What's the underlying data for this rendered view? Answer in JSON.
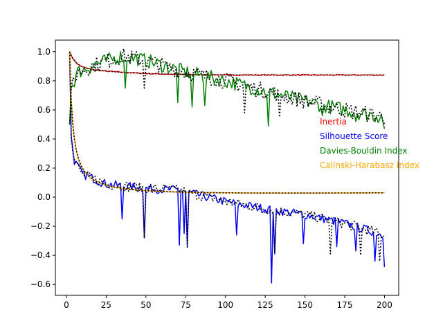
{
  "chart_data": {
    "type": "line",
    "title": "",
    "xlabel": "",
    "ylabel": "",
    "xlim": [
      -6.95,
      208.95
    ],
    "ylim": [
      -0.675,
      1.08
    ],
    "grid": false,
    "x_ticks": [
      0,
      25,
      50,
      75,
      100,
      125,
      150,
      175,
      200
    ],
    "y_ticks": [
      -0.6,
      -0.4,
      -0.2,
      0.0,
      0.2,
      0.4,
      0.6,
      0.8,
      1.0
    ],
    "x_tick_labels": [
      "0",
      "25",
      "50",
      "75",
      "100",
      "125",
      "150",
      "175",
      "200"
    ],
    "y_tick_labels": [
      "−0.6",
      "−0.4",
      "−0.2",
      "0.0",
      "0.2",
      "0.4",
      "0.6",
      "0.8",
      "1.0"
    ],
    "x": {
      "start": 2,
      "end": 200,
      "step": 1
    },
    "series": [
      {
        "name": "Inertia",
        "color": "#ff0000",
        "style": "solid",
        "shape": "power_decay",
        "start": 1.0,
        "end": 0.84,
        "noise": 0.004
      },
      {
        "name": "Inertia fit",
        "color": "#000000",
        "style": "dotted",
        "shape": "power_decay",
        "start": 1.0,
        "end": 0.84,
        "noise": 0.0
      },
      {
        "name": "Silhouette Score",
        "color": "#0000ff",
        "style": "solid",
        "anchors": [
          [
            2,
            0.99
          ],
          [
            3,
            0.42
          ],
          [
            5,
            0.25
          ],
          [
            10,
            0.16
          ],
          [
            25,
            0.09
          ],
          [
            50,
            0.06
          ],
          [
            70,
            0.05
          ],
          [
            100,
            -0.03
          ],
          [
            125,
            -0.08
          ],
          [
            150,
            -0.12
          ],
          [
            175,
            -0.18
          ],
          [
            200,
            -0.26
          ]
        ],
        "noise": 0.03,
        "spikes": [
          [
            35,
            -0.15
          ],
          [
            49,
            -0.28
          ],
          [
            71,
            -0.33
          ],
          [
            74,
            -0.25
          ],
          [
            76,
            -0.33
          ],
          [
            107,
            -0.26
          ],
          [
            129,
            -0.59
          ],
          [
            131,
            -0.39
          ],
          [
            149,
            -0.32
          ],
          [
            170,
            -0.34
          ],
          [
            182,
            -0.37
          ],
          [
            194,
            -0.44
          ],
          [
            200,
            -0.48
          ]
        ]
      },
      {
        "name": "Silhouette fit",
        "color": "#000000",
        "style": "dotted",
        "anchors": [
          [
            2,
            0.99
          ],
          [
            3,
            0.42
          ],
          [
            5,
            0.25
          ],
          [
            10,
            0.16
          ],
          [
            25,
            0.09
          ],
          [
            50,
            0.06
          ],
          [
            70,
            0.05
          ],
          [
            100,
            -0.03
          ],
          [
            125,
            -0.08
          ],
          [
            150,
            -0.12
          ],
          [
            175,
            -0.18
          ],
          [
            200,
            -0.26
          ]
        ],
        "noise": 0.035,
        "spikes": [
          [
            49,
            -0.28
          ],
          [
            76,
            -0.35
          ],
          [
            131,
            -0.38
          ],
          [
            166,
            -0.39
          ],
          [
            185,
            -0.4
          ],
          [
            197,
            -0.44
          ]
        ]
      },
      {
        "name": "Davies-Bouldin Index",
        "color": "#008000",
        "style": "solid",
        "anchors": [
          [
            2,
            0.5
          ],
          [
            3,
            0.75
          ],
          [
            7,
            0.86
          ],
          [
            20,
            0.92
          ],
          [
            35,
            0.97
          ],
          [
            50,
            0.94
          ],
          [
            75,
            0.86
          ],
          [
            100,
            0.8
          ],
          [
            125,
            0.73
          ],
          [
            150,
            0.66
          ],
          [
            175,
            0.6
          ],
          [
            200,
            0.55
          ]
        ],
        "noise": 0.05,
        "spikes": [
          [
            37,
            0.75
          ],
          [
            70,
            0.65
          ],
          [
            79,
            0.62
          ],
          [
            87,
            0.63
          ],
          [
            127,
            0.49
          ],
          [
            161,
            0.56
          ],
          [
            182,
            0.52
          ],
          [
            200,
            0.47
          ]
        ]
      },
      {
        "name": "Davies-Bouldin fit",
        "color": "#000000",
        "style": "dotted",
        "anchors": [
          [
            2,
            0.5
          ],
          [
            3,
            0.75
          ],
          [
            7,
            0.86
          ],
          [
            20,
            0.92
          ],
          [
            35,
            0.97
          ],
          [
            50,
            0.94
          ],
          [
            75,
            0.86
          ],
          [
            100,
            0.8
          ],
          [
            125,
            0.73
          ],
          [
            150,
            0.66
          ],
          [
            175,
            0.6
          ],
          [
            200,
            0.55
          ]
        ],
        "noise": 0.055,
        "spikes": [
          [
            49,
            0.75
          ],
          [
            112,
            0.58
          ],
          [
            134,
            0.55
          ],
          [
            180,
            0.54
          ]
        ]
      },
      {
        "name": "Calinski-Harabasz Index",
        "color": "#ffa500",
        "style": "solid",
        "shape": "reciprocal",
        "start": 1.0,
        "end": 0.03,
        "noise": 0.0
      },
      {
        "name": "Calinski-Harabasz fit",
        "color": "#000000",
        "style": "dotted",
        "shape": "reciprocal",
        "start": 1.0,
        "end": 0.03,
        "noise": 0.0
      }
    ],
    "legend_placement": "right",
    "labels": [
      {
        "text": "Inertia",
        "color": "#ff0000"
      },
      {
        "text": "Silhouette Score",
        "color": "#0000ff"
      },
      {
        "text": "Davies-Bouldin Index",
        "color": "#008000"
      },
      {
        "text": "Calinski-Harabasz Index",
        "color": "#ffa500"
      }
    ]
  }
}
